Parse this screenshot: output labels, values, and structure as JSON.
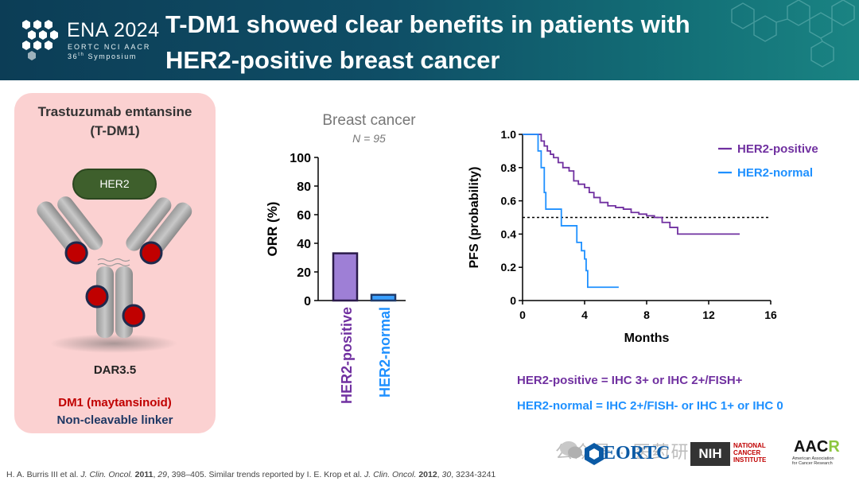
{
  "header": {
    "logo_title": "ENA 2024",
    "logo_orgs": "EORTC NCI AACR",
    "logo_edition_num": "36",
    "logo_edition_sup": "th",
    "logo_edition_word": "Symposium",
    "title_line1": "T-DM1 showed clear benefits in patients with",
    "title_line2": "HER2-positive breast cancer"
  },
  "card": {
    "title_line1": "Trastuzumab emtansine",
    "title_line2": "(T-DM1)",
    "her2_label": "HER2",
    "dar_label": "DAR3.5",
    "dm1_label": "DM1 (maytansinoid)",
    "linker_label": "Non-cleavable linker"
  },
  "colors": {
    "positive": "#7030a0",
    "positive_fill": "#9e7fd6",
    "normal": "#1e90ff",
    "normal_fill": "#3aa0ff",
    "header_bg": "#0f4e66",
    "card_bg": "#fbd1d1",
    "payload": "#c00000"
  },
  "chart_data": [
    {
      "type": "bar",
      "title": "Breast cancer",
      "subtitle": "N = 95",
      "ylabel": "ORR (%)",
      "ylim": [
        0,
        100
      ],
      "yticks": [
        0,
        20,
        40,
        60,
        80,
        100
      ],
      "categories": [
        "HER2-positive",
        "HER2-normal"
      ],
      "values": [
        33,
        4
      ]
    },
    {
      "type": "line",
      "title": "",
      "xlabel": "Months",
      "ylabel": "PFS (probability)",
      "xlim": [
        0,
        16
      ],
      "ylim": [
        0,
        1.0
      ],
      "xticks": [
        0,
        4,
        8,
        12,
        16
      ],
      "yticks": [
        0,
        0.2,
        0.4,
        0.6,
        0.8,
        1.0
      ],
      "ytick_labels": [
        "0",
        "0.2",
        "0.4",
        "0.6",
        "0.8",
        "1.0"
      ],
      "reference_line": 0.5,
      "legend_position": "top-right",
      "series": [
        {
          "name": "HER2-positive",
          "x": [
            0,
            1.0,
            1.2,
            1.4,
            1.6,
            1.8,
            2.0,
            2.3,
            2.6,
            3.0,
            3.3,
            3.6,
            4.0,
            4.3,
            4.6,
            5.0,
            5.5,
            6.0,
            6.5,
            7.0,
            7.5,
            8.0,
            8.5,
            9.0,
            9.5,
            10.0,
            11.0,
            12.0,
            13.0,
            14.0
          ],
          "y": [
            1.0,
            1.0,
            0.96,
            0.93,
            0.9,
            0.88,
            0.86,
            0.83,
            0.8,
            0.78,
            0.72,
            0.7,
            0.68,
            0.65,
            0.62,
            0.59,
            0.57,
            0.56,
            0.55,
            0.53,
            0.52,
            0.51,
            0.5,
            0.47,
            0.44,
            0.4,
            0.4,
            0.4,
            0.4,
            0.4
          ]
        },
        {
          "name": "HER2-normal",
          "x": [
            0,
            0.8,
            1.0,
            1.2,
            1.4,
            1.5,
            2.0,
            2.5,
            3.0,
            3.5,
            3.8,
            4.0,
            4.1,
            4.2,
            5.0,
            6.2
          ],
          "y": [
            1.0,
            1.0,
            0.9,
            0.8,
            0.65,
            0.55,
            0.55,
            0.45,
            0.45,
            0.35,
            0.3,
            0.25,
            0.18,
            0.08,
            0.08,
            0.08
          ]
        }
      ]
    }
  ],
  "definitions": {
    "positive": "HER2-positive = IHC 3+ or IHC 2+/FISH+",
    "normal": "HER2-normal = IHC 2+/FISH- or IHC 1+ or IHC 0"
  },
  "footer": {
    "watermark": "公众号 · 医药研药",
    "eortc": "EORTC",
    "nih": "NIH",
    "nci_line1": "NATIONAL",
    "nci_line2": "CANCER",
    "nci_line3": "INSTITUTE",
    "aacr_main": "AAC",
    "aacr_r": "R",
    "aacr_sub1": "American Association",
    "aacr_sub2": "for Cancer Research",
    "cite_authors": "H. A. Burris III et al.",
    "cite_journal": "J. Clin. Oncol.",
    "cite_year": "2011",
    "cite_vol": "29",
    "cite_pages": ", 398–405. Similar trends reported by I. E. Krop et al.",
    "cite_journal2": "J. Clin. Oncol.",
    "cite_year2": "2012",
    "cite_vol2": "30",
    "cite_pages2": ", 3234-3241"
  }
}
